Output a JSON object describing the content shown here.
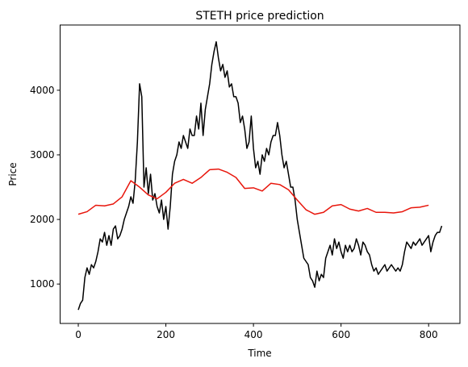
{
  "chart_data": {
    "type": "line",
    "title": "STETH price prediction",
    "x_label": "Time",
    "y_label": "Price",
    "xlim": [
      -41.5,
      871.5
    ],
    "ylim": [
      390,
      5010
    ],
    "xticks": [
      0,
      200,
      400,
      600,
      800
    ],
    "yticks": [
      1000,
      2000,
      3000,
      4000
    ],
    "grid": false,
    "series": [
      {
        "color": "#000000",
        "x": [
          0,
          5,
          10,
          15,
          20,
          25,
          30,
          35,
          40,
          45,
          50,
          55,
          60,
          65,
          70,
          75,
          80,
          85,
          90,
          95,
          100,
          105,
          110,
          115,
          120,
          125,
          130,
          135,
          140,
          145,
          150,
          155,
          160,
          165,
          170,
          175,
          180,
          185,
          190,
          195,
          200,
          205,
          210,
          215,
          220,
          225,
          230,
          235,
          240,
          245,
          250,
          255,
          260,
          265,
          270,
          275,
          280,
          285,
          290,
          295,
          300,
          305,
          310,
          315,
          320,
          325,
          330,
          335,
          340,
          345,
          350,
          355,
          360,
          365,
          370,
          375,
          380,
          385,
          390,
          395,
          400,
          405,
          410,
          415,
          420,
          425,
          430,
          435,
          440,
          445,
          450,
          455,
          460,
          465,
          470,
          475,
          480,
          485,
          490,
          495,
          500,
          505,
          510,
          515,
          520,
          525,
          530,
          535,
          540,
          545,
          550,
          555,
          560,
          565,
          570,
          575,
          580,
          585,
          590,
          595,
          600,
          605,
          610,
          615,
          620,
          625,
          630,
          635,
          640,
          645,
          650,
          655,
          660,
          665,
          670,
          675,
          680,
          685,
          690,
          695,
          700,
          705,
          710,
          715,
          720,
          725,
          730,
          735,
          740,
          745,
          750,
          755,
          760,
          765,
          770,
          775,
          780,
          785,
          790,
          795,
          800,
          805,
          810,
          815,
          820,
          825,
          830
        ],
        "values": [
          600,
          700,
          750,
          1100,
          1250,
          1150,
          1300,
          1250,
          1350,
          1500,
          1700,
          1650,
          1800,
          1600,
          1750,
          1600,
          1850,
          1900,
          1700,
          1750,
          1850,
          2000,
          2100,
          2200,
          2350,
          2250,
          2600,
          3200,
          4100,
          3900,
          2500,
          2800,
          2400,
          2700,
          2300,
          2400,
          2200,
          2100,
          2300,
          2000,
          2200,
          1850,
          2200,
          2700,
          2900,
          3000,
          3200,
          3100,
          3300,
          3200,
          3100,
          3400,
          3300,
          3300,
          3600,
          3400,
          3800,
          3300,
          3700,
          3900,
          4100,
          4400,
          4600,
          4750,
          4500,
          4300,
          4400,
          4200,
          4300,
          4050,
          4100,
          3900,
          3900,
          3800,
          3500,
          3600,
          3400,
          3100,
          3200,
          3600,
          3100,
          2800,
          2900,
          2700,
          3000,
          2900,
          3100,
          3000,
          3200,
          3300,
          3300,
          3500,
          3300,
          3000,
          2800,
          2900,
          2700,
          2500,
          2500,
          2300,
          2000,
          1800,
          1600,
          1400,
          1350,
          1300,
          1100,
          1050,
          950,
          1200,
          1050,
          1150,
          1100,
          1400,
          1500,
          1600,
          1450,
          1700,
          1550,
          1650,
          1500,
          1400,
          1600,
          1500,
          1600,
          1500,
          1550,
          1700,
          1600,
          1450,
          1650,
          1600,
          1500,
          1450,
          1300,
          1200,
          1250,
          1150,
          1200,
          1250,
          1300,
          1200,
          1250,
          1300,
          1250,
          1200,
          1250,
          1200,
          1300,
          1500,
          1650,
          1600,
          1550,
          1650,
          1600,
          1650,
          1700,
          1600,
          1650,
          1700,
          1750,
          1500,
          1650,
          1750,
          1800,
          1800,
          1900
        ]
      },
      {
        "color": "#e8160c",
        "x": [
          0,
          20,
          40,
          60,
          80,
          100,
          120,
          140,
          160,
          180,
          200,
          220,
          240,
          260,
          280,
          300,
          320,
          340,
          360,
          380,
          400,
          420,
          440,
          460,
          480,
          500,
          520,
          540,
          560,
          580,
          600,
          620,
          640,
          660,
          680,
          700,
          720,
          740,
          760,
          780,
          800
        ],
        "values": [
          2080,
          2120,
          2220,
          2210,
          2240,
          2350,
          2600,
          2500,
          2380,
          2320,
          2420,
          2560,
          2620,
          2560,
          2650,
          2770,
          2780,
          2730,
          2650,
          2480,
          2490,
          2440,
          2560,
          2540,
          2460,
          2300,
          2150,
          2080,
          2110,
          2210,
          2230,
          2160,
          2130,
          2170,
          2110,
          2110,
          2100,
          2120,
          2180,
          2190,
          2220
        ]
      }
    ]
  }
}
